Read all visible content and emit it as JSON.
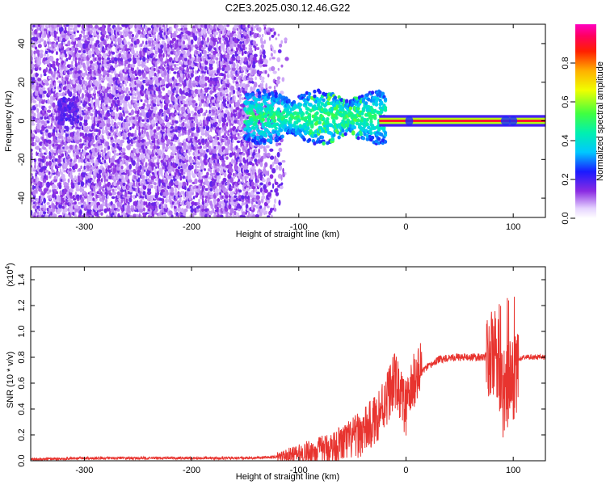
{
  "title": "C2E3.2025.030.12.46.G22",
  "chart_data": [
    {
      "type": "heatmap",
      "xlabel": "Height of straight line (km)",
      "ylabel": "Frequency (Hz)",
      "xlim": [
        -350,
        130
      ],
      "ylim": [
        -50,
        50
      ],
      "x_ticks": [
        -300,
        -200,
        -100,
        0,
        100
      ],
      "y_ticks": [
        -40,
        -20,
        0,
        20,
        40
      ],
      "colorbar": {
        "label": "Normalized spectral amplitude",
        "range": [
          0,
          1
        ],
        "ticks": [
          0.0,
          0.2,
          0.4,
          0.6,
          0.8
        ],
        "tick_labels": [
          "0.0",
          "0.2",
          "0.4",
          "0.6",
          "0.8"
        ],
        "colormap": "rainbow (white → violet → blue → cyan → green → yellow → red → magenta)"
      },
      "description_regions": [
        {
          "x_range": [
            -350,
            -120
          ],
          "freq_range": [
            -50,
            50
          ],
          "amplitude": "0.05-0.25 scattered noise"
        },
        {
          "x_range": [
            -150,
            -20
          ],
          "freq_range": [
            -8,
            12
          ],
          "amplitude": "0.3-0.6"
        },
        {
          "x_range": [
            -25,
            130
          ],
          "freq_range": [
            0,
            0
          ],
          "amplitude": "0.9-1.0 carrier line"
        }
      ]
    },
    {
      "type": "line",
      "xlabel": "Height of straight line (km)",
      "ylabel": "SNR (10 * v/v)",
      "y_multiplier": "(x10",
      "y_multiplier_exp": "4",
      "y_multiplier_close": ")",
      "xlim": [
        -350,
        130
      ],
      "ylim": [
        0,
        1.5
      ],
      "x_ticks": [
        -300,
        -200,
        -100,
        0,
        100
      ],
      "y_ticks": [
        0.0,
        0.2,
        0.4,
        0.6,
        0.8,
        1.0,
        1.2,
        1.4
      ],
      "y_tick_labels": [
        "0.0",
        "0.2",
        "0.4",
        "0.6",
        "0.8",
        "1.0",
        "1.2",
        "1.4"
      ],
      "color": "#e8342f",
      "series": [
        {
          "x": [
            -350,
            -300,
            -250,
            -200,
            -150,
            -120,
            -100,
            -90,
            -80,
            -70,
            -60,
            -50,
            -40,
            -30,
            -25,
            -20,
            -15,
            -10,
            -5,
            0,
            5,
            10,
            15,
            20,
            25,
            30,
            40,
            50,
            60,
            70,
            80,
            85,
            90,
            95,
            100,
            105,
            110,
            120,
            130
          ],
          "y": [
            0.01,
            0.02,
            0.02,
            0.02,
            0.02,
            0.03,
            0.05,
            0.07,
            0.08,
            0.1,
            0.13,
            0.17,
            0.22,
            0.3,
            0.38,
            0.45,
            0.55,
            0.62,
            0.5,
            0.4,
            0.55,
            0.68,
            0.7,
            0.72,
            0.75,
            0.78,
            0.8,
            0.8,
            0.8,
            0.8,
            0.81,
            0.82,
            0.5,
            0.6,
            0.6,
            0.78,
            0.8,
            0.8,
            0.8
          ]
        }
      ]
    }
  ]
}
